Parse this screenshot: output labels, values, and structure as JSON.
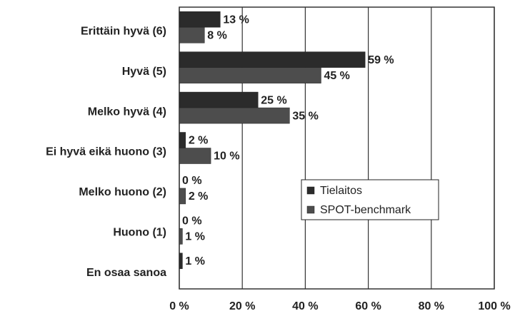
{
  "chart_data": {
    "type": "hbar",
    "categories": [
      "Erittäin hyvä (6)",
      "Hyvä (5)",
      "Melko hyvä (4)",
      "Ei hyvä eikä huono (3)",
      "Melko huono (2)",
      "Huono (1)",
      "En osaa sanoa"
    ],
    "series": [
      {
        "name": "Tielaitos",
        "color": "#2b2b2b",
        "values": [
          13,
          59,
          25,
          2,
          0,
          0,
          1
        ],
        "value_labels": [
          "13 %",
          "59 %",
          "25 %",
          "2 %",
          "0 %",
          "0 %",
          "1 %"
        ]
      },
      {
        "name": "SPOT-benchmark",
        "color": "#4d4d4d",
        "values": [
          8,
          45,
          35,
          10,
          2,
          1,
          null
        ],
        "value_labels": [
          "8 %",
          "45 %",
          "35 %",
          "10 %",
          "2 %",
          "1 %",
          null
        ]
      }
    ],
    "xlim": [
      0,
      100
    ],
    "xticks": [
      {
        "value": 0,
        "label": "0 %"
      },
      {
        "value": 20,
        "label": "20 %"
      },
      {
        "value": 40,
        "label": "40 %"
      },
      {
        "value": 60,
        "label": "60 %"
      },
      {
        "value": 80,
        "label": "80 %"
      },
      {
        "value": 100,
        "label": "100 %"
      }
    ],
    "grid": true
  }
}
